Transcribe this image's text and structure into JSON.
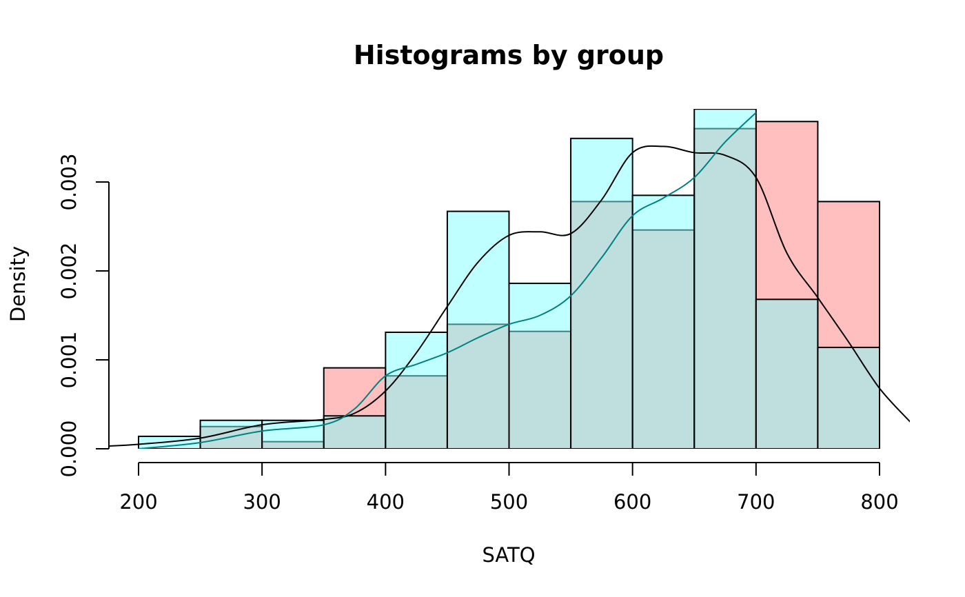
{
  "chart_data": {
    "type": "histogram",
    "title": "Histograms by group",
    "xlabel": "SATQ",
    "ylabel": "Density",
    "xlim": [
      175,
      825
    ],
    "ylim": [
      0,
      0.0038
    ],
    "x_ticks": [
      200,
      300,
      400,
      500,
      600,
      700,
      800
    ],
    "x_tick_labels": [
      "200",
      "300",
      "400",
      "500",
      "600",
      "700",
      "800"
    ],
    "y_ticks": [
      0,
      0.001,
      0.002,
      0.003
    ],
    "y_tick_labels": [
      "0.000",
      "0.001",
      "0.002",
      "0.003"
    ],
    "bin_edges": [
      200,
      250,
      300,
      350,
      400,
      450,
      500,
      550,
      600,
      650,
      700,
      750,
      800
    ],
    "grid": false,
    "series": [
      {
        "color": "#FF8080",
        "densities": [
          0.0,
          0.00025,
          8e-05,
          0.00091,
          0.00082,
          0.0014,
          0.00132,
          0.00278,
          0.00246,
          0.0036,
          0.00368,
          0.00278
        ],
        "density_curve": {
          "color": "#000000",
          "x": [
            175,
            200,
            250,
            300,
            350,
            375,
            400,
            425,
            450,
            475,
            500,
            525,
            550,
            575,
            600,
            625,
            650,
            675,
            700,
            725,
            750,
            775,
            800,
            825
          ],
          "y": [
            3e-05,
            5e-05,
            0.00012,
            0.00027,
            0.00033,
            0.0004,
            0.00065,
            0.00108,
            0.0016,
            0.0021,
            0.0024,
            0.00244,
            0.00242,
            0.0028,
            0.00333,
            0.0034,
            0.00333,
            0.0033,
            0.00305,
            0.0022,
            0.0017,
            0.0012,
            0.00068,
            0.0003
          ]
        }
      },
      {
        "color": "#80FFFF",
        "densities": [
          0.00014,
          0.00032,
          0.00032,
          0.00037,
          0.00131,
          0.00267,
          0.00186,
          0.00349,
          0.00285,
          0.00382,
          0.00168,
          0.00114
        ],
        "density_curve": {
          "color": "#008080",
          "x": [
            200,
            250,
            300,
            350,
            375,
            400,
            425,
            450,
            475,
            500,
            525,
            550,
            575,
            600,
            625,
            650,
            675,
            700
          ],
          "y": [
            0.0,
            7e-05,
            0.0002,
            0.00027,
            0.00045,
            0.00082,
            0.00095,
            0.00108,
            0.00125,
            0.0014,
            0.0015,
            0.00172,
            0.00215,
            0.00262,
            0.00282,
            0.00305,
            0.00345,
            0.00378
          ]
        }
      }
    ]
  }
}
